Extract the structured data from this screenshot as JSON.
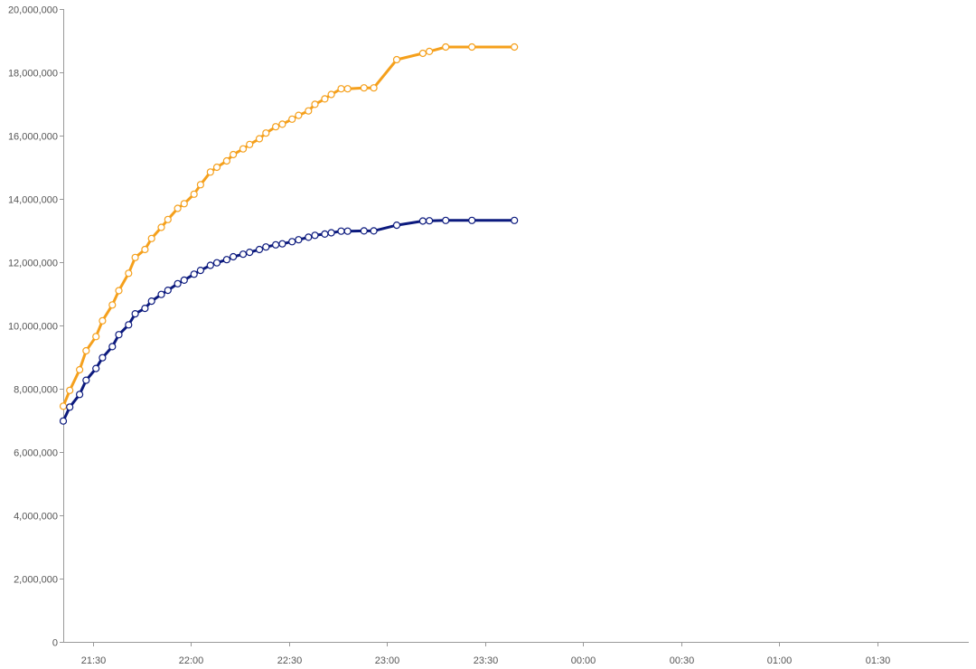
{
  "chart_data": {
    "type": "line",
    "title": "",
    "xlabel": "",
    "ylabel": "",
    "grid": false,
    "legend": "none",
    "ylim": [
      0,
      20000000
    ],
    "y_ticks": [
      0,
      2000000,
      4000000,
      6000000,
      8000000,
      10000000,
      12000000,
      14000000,
      16000000,
      18000000,
      20000000
    ],
    "y_tick_labels": [
      "0",
      "2,000,000",
      "4,000,000",
      "6,000,000",
      "8,000,000",
      "10,000,000",
      "12,000,000",
      "14,000,000",
      "16,000,000",
      "18,000,000",
      "20,000,000"
    ],
    "xlim": [
      "21:21",
      "01:58"
    ],
    "x_ticks": [
      "21:30",
      "22:00",
      "22:30",
      "23:00",
      "23:30",
      "00:00",
      "00:30",
      "01:00",
      "01:30"
    ],
    "x_tick_labels": [
      "21:30",
      "22:00",
      "22:30",
      "23:00",
      "23:30",
      "00:00",
      "00:30",
      "01:00",
      "01:30"
    ],
    "series": [
      {
        "color": "#f5a01c",
        "points": [
          [
            "21:21",
            7450000
          ],
          [
            "21:23",
            7950000
          ],
          [
            "21:26",
            8600000
          ],
          [
            "21:28",
            9200000
          ],
          [
            "21:31",
            9650000
          ],
          [
            "21:33",
            10150000
          ],
          [
            "21:36",
            10650000
          ],
          [
            "21:38",
            11100000
          ],
          [
            "21:41",
            11650000
          ],
          [
            "21:43",
            12150000
          ],
          [
            "21:46",
            12400000
          ],
          [
            "21:48",
            12750000
          ],
          [
            "21:51",
            13100000
          ],
          [
            "21:53",
            13350000
          ],
          [
            "21:56",
            13700000
          ],
          [
            "21:58",
            13850000
          ],
          [
            "22:01",
            14150000
          ],
          [
            "22:03",
            14450000
          ],
          [
            "22:06",
            14850000
          ],
          [
            "22:08",
            15000000
          ],
          [
            "22:11",
            15200000
          ],
          [
            "22:13",
            15400000
          ],
          [
            "22:16",
            15580000
          ],
          [
            "22:18",
            15720000
          ],
          [
            "22:21",
            15900000
          ],
          [
            "22:23",
            16080000
          ],
          [
            "22:26",
            16280000
          ],
          [
            "22:28",
            16360000
          ],
          [
            "22:31",
            16520000
          ],
          [
            "22:33",
            16640000
          ],
          [
            "22:36",
            16780000
          ],
          [
            "22:38",
            16990000
          ],
          [
            "22:41",
            17160000
          ],
          [
            "22:43",
            17300000
          ],
          [
            "22:46",
            17480000
          ],
          [
            "22:48",
            17480000
          ],
          [
            "22:53",
            17510000
          ],
          [
            "22:56",
            17510000
          ],
          [
            "23:03",
            18400000
          ],
          [
            "23:11",
            18600000
          ],
          [
            "23:13",
            18660000
          ],
          [
            "23:18",
            18800000
          ],
          [
            "23:26",
            18800000
          ],
          [
            "23:39",
            18800000
          ]
        ]
      },
      {
        "color": "#0c1a7e",
        "points": [
          [
            "21:21",
            6980000
          ],
          [
            "21:23",
            7420000
          ],
          [
            "21:26",
            7820000
          ],
          [
            "21:28",
            8270000
          ],
          [
            "21:31",
            8640000
          ],
          [
            "21:33",
            8980000
          ],
          [
            "21:36",
            9330000
          ],
          [
            "21:38",
            9710000
          ],
          [
            "21:41",
            10020000
          ],
          [
            "21:43",
            10370000
          ],
          [
            "21:46",
            10540000
          ],
          [
            "21:48",
            10770000
          ],
          [
            "21:51",
            10980000
          ],
          [
            "21:53",
            11110000
          ],
          [
            "21:56",
            11320000
          ],
          [
            "21:58",
            11430000
          ],
          [
            "22:01",
            11620000
          ],
          [
            "22:03",
            11740000
          ],
          [
            "22:06",
            11900000
          ],
          [
            "22:08",
            11980000
          ],
          [
            "22:11",
            12080000
          ],
          [
            "22:13",
            12170000
          ],
          [
            "22:16",
            12250000
          ],
          [
            "22:18",
            12310000
          ],
          [
            "22:21",
            12400000
          ],
          [
            "22:23",
            12480000
          ],
          [
            "22:26",
            12550000
          ],
          [
            "22:28",
            12580000
          ],
          [
            "22:31",
            12650000
          ],
          [
            "22:33",
            12710000
          ],
          [
            "22:36",
            12790000
          ],
          [
            "22:38",
            12850000
          ],
          [
            "22:41",
            12890000
          ],
          [
            "22:43",
            12930000
          ],
          [
            "22:46",
            12980000
          ],
          [
            "22:48",
            12980000
          ],
          [
            "22:53",
            12990000
          ],
          [
            "22:56",
            12990000
          ],
          [
            "23:03",
            13170000
          ],
          [
            "23:11",
            13300000
          ],
          [
            "23:13",
            13310000
          ],
          [
            "23:18",
            13320000
          ],
          [
            "23:26",
            13320000
          ],
          [
            "23:39",
            13320000
          ]
        ]
      }
    ]
  }
}
